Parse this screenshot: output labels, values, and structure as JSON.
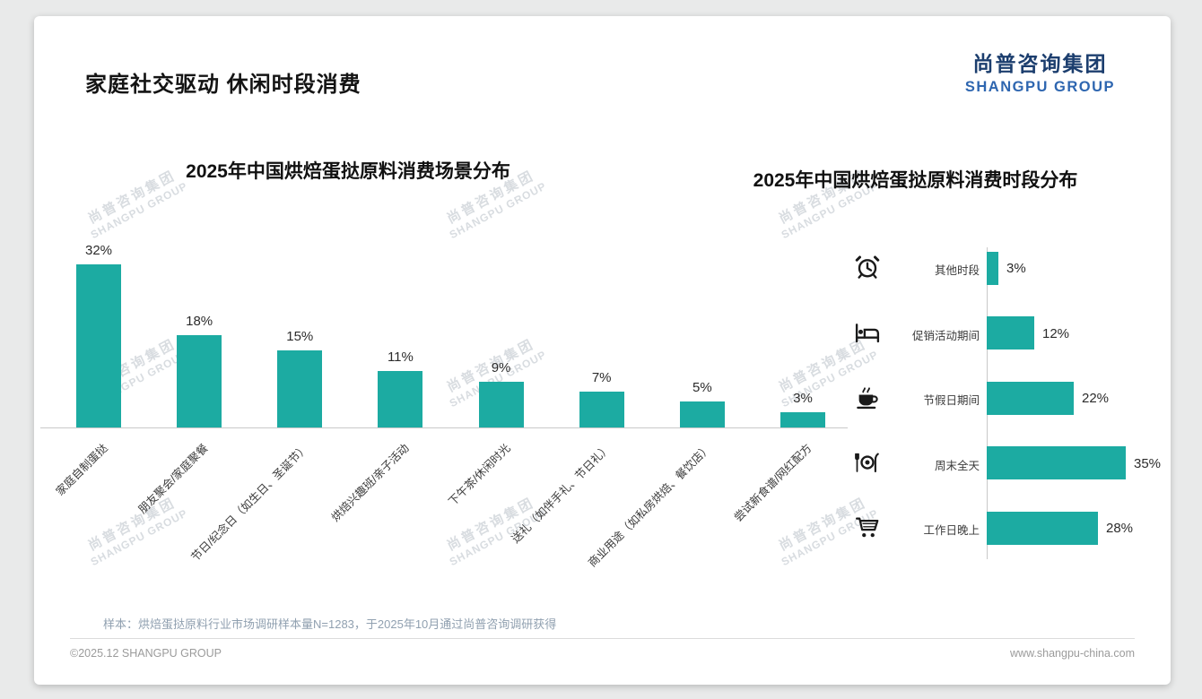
{
  "page": {
    "title": "家庭社交驱动 休闲时段消费",
    "logo": {
      "cn": "尚普咨询集团",
      "en": "SHANGPU GROUP"
    },
    "footnote": "样本：烘焙蛋挞原料行业市场调研样本量N=1283，于2025年10月通过尚普咨询调研获得",
    "footer_left": "©2025.12 SHANGPU GROUP",
    "footer_right": "www.shangpu-china.com",
    "watermark": {
      "line1": "尚普咨询集团",
      "line2": "SHANGPU GROUP"
    }
  },
  "colors": {
    "bar": "#1caba2",
    "logo_navy": "#1c3e6e",
    "logo_blue": "#2e66b0"
  },
  "chart_data": [
    {
      "type": "bar",
      "title": "2025年中国烘焙蛋挞原料消费场景分布",
      "categories": [
        "家庭自制蛋挞",
        "朋友聚会/家庭聚餐",
        "节日/纪念日（如生日、圣诞节）",
        "烘焙兴趣班/亲子活动",
        "下午茶/休闲时光",
        "送礼（如伴手礼、节日礼）",
        "商业用途（如私房烘焙、餐饮店）",
        "尝试新食谱/网红配方"
      ],
      "values": [
        32,
        18,
        15,
        11,
        9,
        7,
        5,
        3
      ],
      "value_labels": [
        "32%",
        "18%",
        "15%",
        "11%",
        "9%",
        "7%",
        "5%",
        "3%"
      ],
      "unit": "%",
      "ylim": [
        0,
        35
      ],
      "grid": false,
      "legend": "none"
    },
    {
      "type": "bar",
      "orientation": "horizontal",
      "title": "2025年中国烘焙蛋挞原料消费时段分布",
      "categories": [
        "其他时段",
        "促销活动期间",
        "节假日期间",
        "周末全天",
        "工作日晚上"
      ],
      "icons": [
        "alarm-clock",
        "bed",
        "hot-drink",
        "dining",
        "shopping-cart"
      ],
      "values": [
        3,
        12,
        22,
        35,
        28
      ],
      "value_labels": [
        "3%",
        "12%",
        "22%",
        "35%",
        "28%"
      ],
      "unit": "%",
      "xlim": [
        0,
        40
      ],
      "grid": false,
      "legend": "none"
    }
  ]
}
